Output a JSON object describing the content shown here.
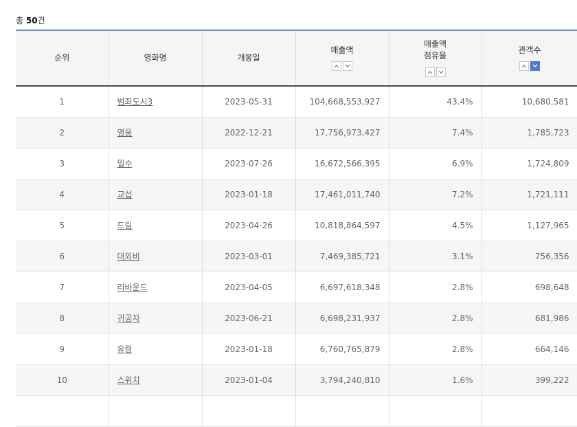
{
  "summary": {
    "prefix": "총 ",
    "count": "50",
    "suffix": "건"
  },
  "headers": {
    "rank": "순위",
    "title": "영화명",
    "release": "개봉일",
    "sales": "매출액",
    "share_line1": "매출액",
    "share_line2": "점유율",
    "audience": "관객수"
  },
  "sort_icons": {
    "up": "chevron-up-icon",
    "down": "chevron-down-icon",
    "active_color": "#4f79c9"
  },
  "colors": {
    "header_top_border": "#6e86c6",
    "header_bg": "#f5f5f5",
    "zebra": "#f6f6f6"
  },
  "rows": [
    {
      "rank": "1",
      "title": "범죄도시3",
      "release": "2023-05-31",
      "sales": "104,668,553,927",
      "share": "43.4%",
      "audience": "10,680,581"
    },
    {
      "rank": "2",
      "title": "영웅",
      "release": "2022-12-21",
      "sales": "17,756,973,427",
      "share": "7.4%",
      "audience": "1,785,723"
    },
    {
      "rank": "3",
      "title": "밀수",
      "release": "2023-07-26",
      "sales": "16,672,566,395",
      "share": "6.9%",
      "audience": "1,724,809"
    },
    {
      "rank": "4",
      "title": "교섭",
      "release": "2023-01-18",
      "sales": "17,461,011,740",
      "share": "7.2%",
      "audience": "1,721,111"
    },
    {
      "rank": "5",
      "title": "드림",
      "release": "2023-04-26",
      "sales": "10,818,864,597",
      "share": "4.5%",
      "audience": "1,127,965"
    },
    {
      "rank": "6",
      "title": "대외비",
      "release": "2023-03-01",
      "sales": "7,469,385,721",
      "share": "3.1%",
      "audience": "756,356"
    },
    {
      "rank": "7",
      "title": "리바운드",
      "release": "2023-04-05",
      "sales": "6,697,618,348",
      "share": "2.8%",
      "audience": "698,648"
    },
    {
      "rank": "8",
      "title": "귀공자",
      "release": "2023-06-21",
      "sales": "6,698,231,937",
      "share": "2.8%",
      "audience": "681,986"
    },
    {
      "rank": "9",
      "title": "유령",
      "release": "2023-01-18",
      "sales": "6,760,765,879",
      "share": "2.8%",
      "audience": "664,146"
    },
    {
      "rank": "10",
      "title": "스위치",
      "release": "2023-01-04",
      "sales": "3,794,240,810",
      "share": "1.6%",
      "audience": "399,222"
    },
    {
      "rank": "",
      "title": "",
      "release": "",
      "sales": "",
      "share": "",
      "audience": ""
    }
  ]
}
